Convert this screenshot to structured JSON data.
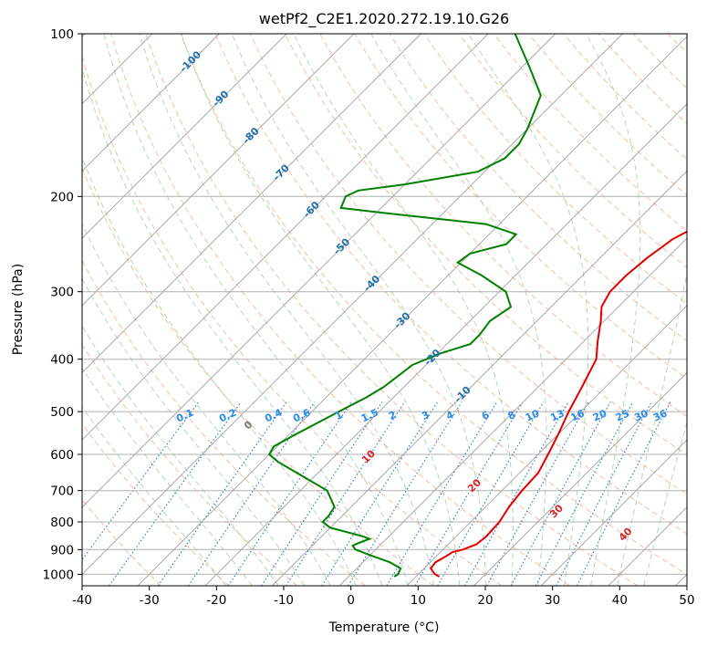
{
  "chart_data": {
    "type": "line",
    "title": "wetPf2_C2E1.2020.272.19.10.G26",
    "xlabel": "Temperature (°C)",
    "ylabel": "Pressure (hPa)",
    "xlim": [
      -40,
      50
    ],
    "ylim": [
      1050,
      100
    ],
    "y_scale": "log",
    "grid": true,
    "x_ticks": [
      -40,
      -30,
      -20,
      -10,
      0,
      10,
      20,
      30,
      40,
      50
    ],
    "y_ticks": [
      100,
      200,
      300,
      400,
      500,
      600,
      700,
      800,
      900,
      1000
    ],
    "temperature": {
      "color": "#e00000",
      "points": [
        {
          "p": 1010,
          "t": 13.5
        },
        {
          "p": 1000,
          "t": 12.5
        },
        {
          "p": 975,
          "t": 11.0
        },
        {
          "p": 950,
          "t": 10.8
        },
        {
          "p": 925,
          "t": 11.5
        },
        {
          "p": 910,
          "t": 11.8
        },
        {
          "p": 900,
          "t": 13.0
        },
        {
          "p": 880,
          "t": 14.2
        },
        {
          "p": 850,
          "t": 14.5
        },
        {
          "p": 800,
          "t": 14.3
        },
        {
          "p": 750,
          "t": 13.5
        },
        {
          "p": 700,
          "t": 13.0
        },
        {
          "p": 650,
          "t": 12.8
        },
        {
          "p": 600,
          "t": 11.5
        },
        {
          "p": 550,
          "t": 10.0
        },
        {
          "p": 500,
          "t": 8.2
        },
        {
          "p": 450,
          "t": 6.5
        },
        {
          "p": 400,
          "t": 4.5
        },
        {
          "p": 370,
          "t": 2.0
        },
        {
          "p": 340,
          "t": -0.5
        },
        {
          "p": 320,
          "t": -2.5
        },
        {
          "p": 300,
          "t": -3.5
        },
        {
          "p": 280,
          "t": -3.5
        },
        {
          "p": 260,
          "t": -3.0
        },
        {
          "p": 240,
          "t": -2.0
        },
        {
          "p": 225,
          "t": 0.0
        },
        {
          "p": 210,
          "t": 2.5
        },
        {
          "p": 200,
          "t": 4.0
        },
        {
          "p": 185,
          "t": 4.0
        },
        {
          "p": 170,
          "t": 3.0
        },
        {
          "p": 155,
          "t": 1.5
        },
        {
          "p": 140,
          "t": 0.0
        },
        {
          "p": 130,
          "t": -1.5
        },
        {
          "p": 120,
          "t": -1.5
        },
        {
          "p": 110,
          "t": -1.0
        },
        {
          "p": 100,
          "t": -0.5
        }
      ]
    },
    "dewpoint": {
      "color": "#008000",
      "points": [
        {
          "p": 1010,
          "t": 6.8
        },
        {
          "p": 1000,
          "t": 7.0
        },
        {
          "p": 975,
          "t": 6.5
        },
        {
          "p": 950,
          "t": 4.0
        },
        {
          "p": 925,
          "t": 0.5
        },
        {
          "p": 900,
          "t": -3.0
        },
        {
          "p": 885,
          "t": -4.0
        },
        {
          "p": 875,
          "t": -3.5
        },
        {
          "p": 860,
          "t": -2.5
        },
        {
          "p": 850,
          "t": -4.0
        },
        {
          "p": 820,
          "t": -10.0
        },
        {
          "p": 800,
          "t": -12.0
        },
        {
          "p": 780,
          "t": -12.0
        },
        {
          "p": 750,
          "t": -12.5
        },
        {
          "p": 700,
          "t": -16.0
        },
        {
          "p": 650,
          "t": -23.0
        },
        {
          "p": 620,
          "t": -27.5
        },
        {
          "p": 600,
          "t": -30.0
        },
        {
          "p": 580,
          "t": -30.5
        },
        {
          "p": 550,
          "t": -29.0
        },
        {
          "p": 500,
          "t": -26.0
        },
        {
          "p": 470,
          "t": -24.0
        },
        {
          "p": 450,
          "t": -23.0
        },
        {
          "p": 430,
          "t": -22.5
        },
        {
          "p": 410,
          "t": -22.0
        },
        {
          "p": 390,
          "t": -19.5
        },
        {
          "p": 375,
          "t": -16.5
        },
        {
          "p": 360,
          "t": -16.5
        },
        {
          "p": 340,
          "t": -17.0
        },
        {
          "p": 320,
          "t": -16.0
        },
        {
          "p": 300,
          "t": -19.0
        },
        {
          "p": 280,
          "t": -25.0
        },
        {
          "p": 265,
          "t": -30.5
        },
        {
          "p": 255,
          "t": -30.0
        },
        {
          "p": 245,
          "t": -26.0
        },
        {
          "p": 235,
          "t": -26.0
        },
        {
          "p": 225,
          "t": -32.0
        },
        {
          "p": 215,
          "t": -48.0
        },
        {
          "p": 210,
          "t": -56.0
        },
        {
          "p": 200,
          "t": -57.0
        },
        {
          "p": 195,
          "t": -56.0
        },
        {
          "p": 190,
          "t": -50.0
        },
        {
          "p": 180,
          "t": -41.0
        },
        {
          "p": 170,
          "t": -39.0
        },
        {
          "p": 160,
          "t": -39.0
        },
        {
          "p": 150,
          "t": -40.0
        },
        {
          "p": 130,
          "t": -43.0
        },
        {
          "p": 115,
          "t": -49.0
        },
        {
          "p": 100,
          "t": -56.0
        }
      ]
    },
    "isotherm_labels": [
      "-100",
      "-90",
      "-80",
      "-70",
      "-60",
      "-50",
      "-40",
      "-30",
      "-20",
      "-10"
    ],
    "isotherm_label_values": [
      -100,
      -90,
      -80,
      -70,
      -60,
      -50,
      -40,
      -30,
      -20,
      -10
    ],
    "mixing_ratio_labels": [
      "0.1",
      "0.2",
      "0.4",
      "0.6",
      "1",
      "1.5",
      "2",
      "3",
      "4",
      "6",
      "8",
      "10",
      "13",
      "16",
      "20",
      "25",
      "30",
      "36"
    ],
    "mixing_ratio_values": [
      0.1,
      0.2,
      0.4,
      0.6,
      1,
      1.5,
      2,
      3,
      4,
      6,
      8,
      10,
      13,
      16,
      20,
      25,
      30,
      36
    ],
    "moist_adiabat_labels": [
      "0",
      "10",
      "20",
      "30",
      "40"
    ],
    "moist_adiabat_values": [
      0,
      10,
      20,
      30,
      40
    ]
  }
}
